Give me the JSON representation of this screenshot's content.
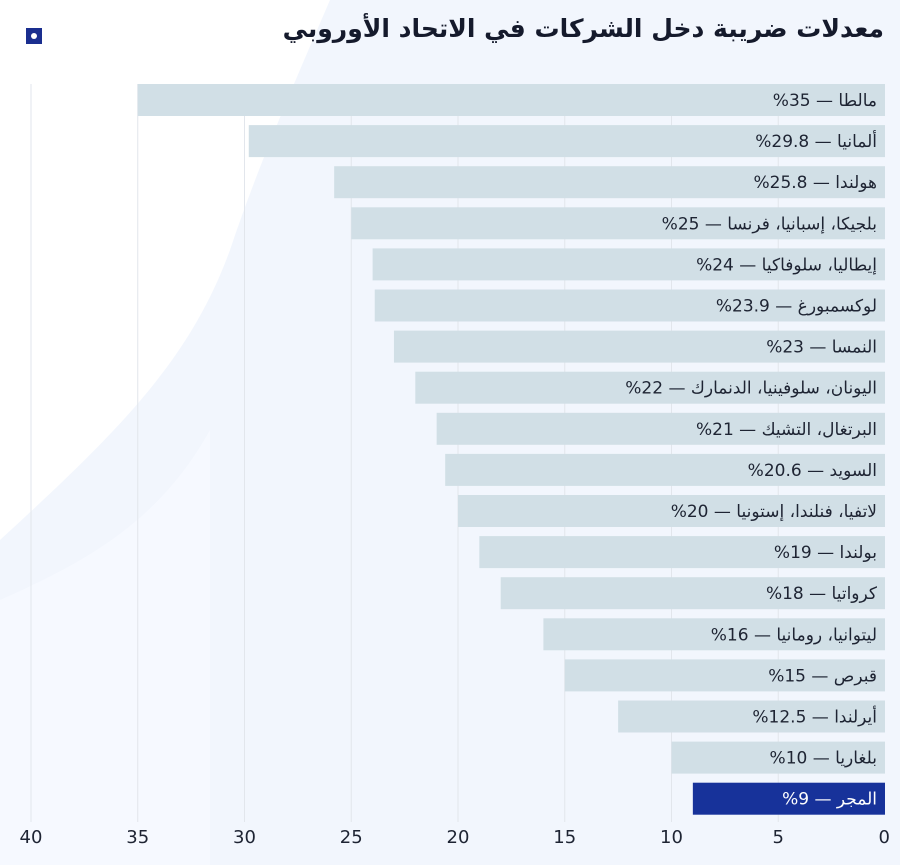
{
  "colors": {
    "bar": "#d1dfe6",
    "highlight": "#17329a",
    "bar_label": "#1e2433",
    "highlight_label": "#ffffff",
    "grid": "#e2e6ec",
    "tick_label": "#1e2433",
    "background_tint": "#eef3fc"
  },
  "icons": {
    "legend": "square-marker-icon"
  },
  "chart_data": {
    "type": "bar",
    "orientation": "horizontal",
    "x_direction": "right-to-left",
    "title": "معدلات ضريبة دخل الشركات في الاتحاد الأوروبي",
    "xlabel": "",
    "ylabel": "",
    "xlim": [
      0,
      40
    ],
    "xticks": [
      0,
      5,
      10,
      15,
      20,
      25,
      30,
      35,
      40
    ],
    "grid": "vertical",
    "legend": "top-left marker",
    "categories": [
      "مالطا",
      "ألمانيا",
      "هولندا",
      "بلجيكا، إسبانيا، فرنسا",
      "إيطاليا، سلوفاكيا",
      "لوكسمبورغ",
      "النمسا",
      "اليونان، سلوفينيا، الدنمارك",
      "البرتغال، التشيك",
      "السويد",
      "لاتفيا، فنلندا، إستونيا",
      "بولندا",
      "كرواتيا",
      "ليتوانيا، رومانيا",
      "قبرص",
      "أيرلندا",
      "بلغاريا",
      "المجر"
    ],
    "values": [
      35,
      29.8,
      25.8,
      25,
      24,
      23.9,
      23,
      22,
      21,
      20.6,
      20,
      19,
      18,
      16,
      15,
      12.5,
      10,
      9
    ],
    "labels": [
      "مالطا — 35%",
      "ألمانيا — 29.8%",
      "هولندا — 25.8%",
      "بلجيكا، إسبانيا، فرنسا — 25%",
      "إيطاليا، سلوفاكيا — 24%",
      "لوكسمبورغ — 23.9%",
      "النمسا — 23%",
      "اليونان، سلوفينيا، الدنمارك — 22%",
      "البرتغال، التشيك — 21%",
      "السويد — 20.6%",
      "لاتفيا، فنلندا، إستونيا — 20%",
      "بولندا — 19%",
      "كرواتيا — 18%",
      "ليتوانيا، رومانيا — 16%",
      "قبرص — 15%",
      "أيرلندا — 12.5%",
      "بلغاريا — 10%",
      "المجر — 9%"
    ],
    "highlighted": "المجر"
  }
}
